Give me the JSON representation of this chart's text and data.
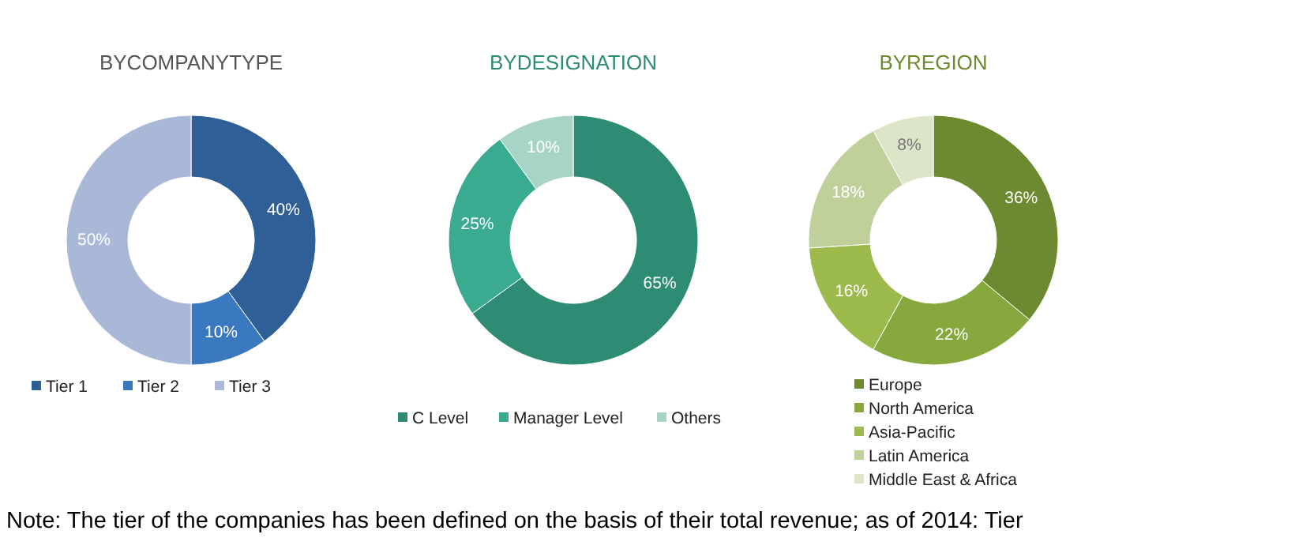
{
  "chart_data": [
    {
      "type": "donut",
      "title": "BYCOMPANYTYPE",
      "categories": [
        "Tier 1",
        "Tier 2",
        "Tier 3"
      ],
      "values": [
        40,
        10,
        50
      ],
      "value_labels": [
        "40%",
        "10%",
        "50%"
      ],
      "colors": [
        "#2e5f96",
        "#3a78c0",
        "#a9b8d6"
      ],
      "legend": "bottom",
      "annotations": [
        "Note: The tier of the companies has been defined on the basis of their total revenue; as of 2014: Tier"
      ]
    },
    {
      "type": "donut",
      "title": "BYDESIGNATION",
      "categories": [
        "C Level",
        "Manager Level",
        "Others"
      ],
      "values": [
        65,
        25,
        10
      ],
      "value_labels": [
        "65%",
        "25%",
        "10%"
      ],
      "colors": [
        "#2e8b74",
        "#3aaa90",
        "#a8d4c8"
      ],
      "legend": "bottom"
    },
    {
      "type": "donut",
      "title": "BYREGION",
      "categories": [
        "Europe",
        "North America",
        "Asia-Pacific",
        "Latin America",
        "Middle East & Africa"
      ],
      "values": [
        36,
        22,
        16,
        18,
        8
      ],
      "value_labels": [
        "36%",
        "22%",
        "16%",
        "18%",
        "8%"
      ],
      "colors": [
        "#6e8a30",
        "#86a83c",
        "#9dbb4c",
        "#bfd09a",
        "#dde5c8"
      ],
      "legend": "bottom"
    }
  ]
}
